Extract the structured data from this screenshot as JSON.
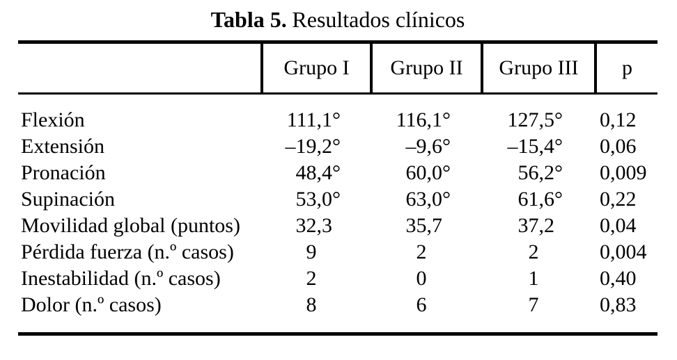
{
  "title": {
    "bold": "Tabla 5.",
    "rest": "Resultados clínicos"
  },
  "table": {
    "headers": [
      "",
      "Grupo I",
      "Grupo II",
      "Grupo III",
      "p"
    ],
    "rows": [
      {
        "label": "Flexión",
        "grupo1": "111,1°",
        "grupo2": "116,1°",
        "grupo3": "127,5°",
        "p": "0,12"
      },
      {
        "label": "Extensión",
        "grupo1": "–19,2°",
        "grupo2": "–9,6°",
        "grupo3": "–15,4°",
        "p": "0,06"
      },
      {
        "label": "Pronación",
        "grupo1": "48,4°",
        "grupo2": "60,0°",
        "grupo3": "56,2°",
        "p": "0,009"
      },
      {
        "label": "Supinación",
        "grupo1": "53,0°",
        "grupo2": "63,0°",
        "grupo3": "61,6°",
        "p": "0,22"
      },
      {
        "label": "Movilidad global (puntos)",
        "grupo1": "32,3",
        "grupo2": "35,7",
        "grupo3": "37,2",
        "p": "0,04"
      },
      {
        "label": "Pérdida fuerza (n.º casos)",
        "grupo1": "9",
        "grupo2": "2",
        "grupo3": "2",
        "p": "0,004"
      },
      {
        "label": "Inestabilidad (n.º casos)",
        "grupo1": "2",
        "grupo2": "0",
        "grupo3": "1",
        "p": "0,40"
      },
      {
        "label": "Dolor (n.º casos)",
        "grupo1": "8",
        "grupo2": "6",
        "grupo3": "7",
        "p": "0,83"
      }
    ]
  },
  "colors": {
    "background": "#ffffff",
    "text": "#000000",
    "border": "#000000"
  }
}
